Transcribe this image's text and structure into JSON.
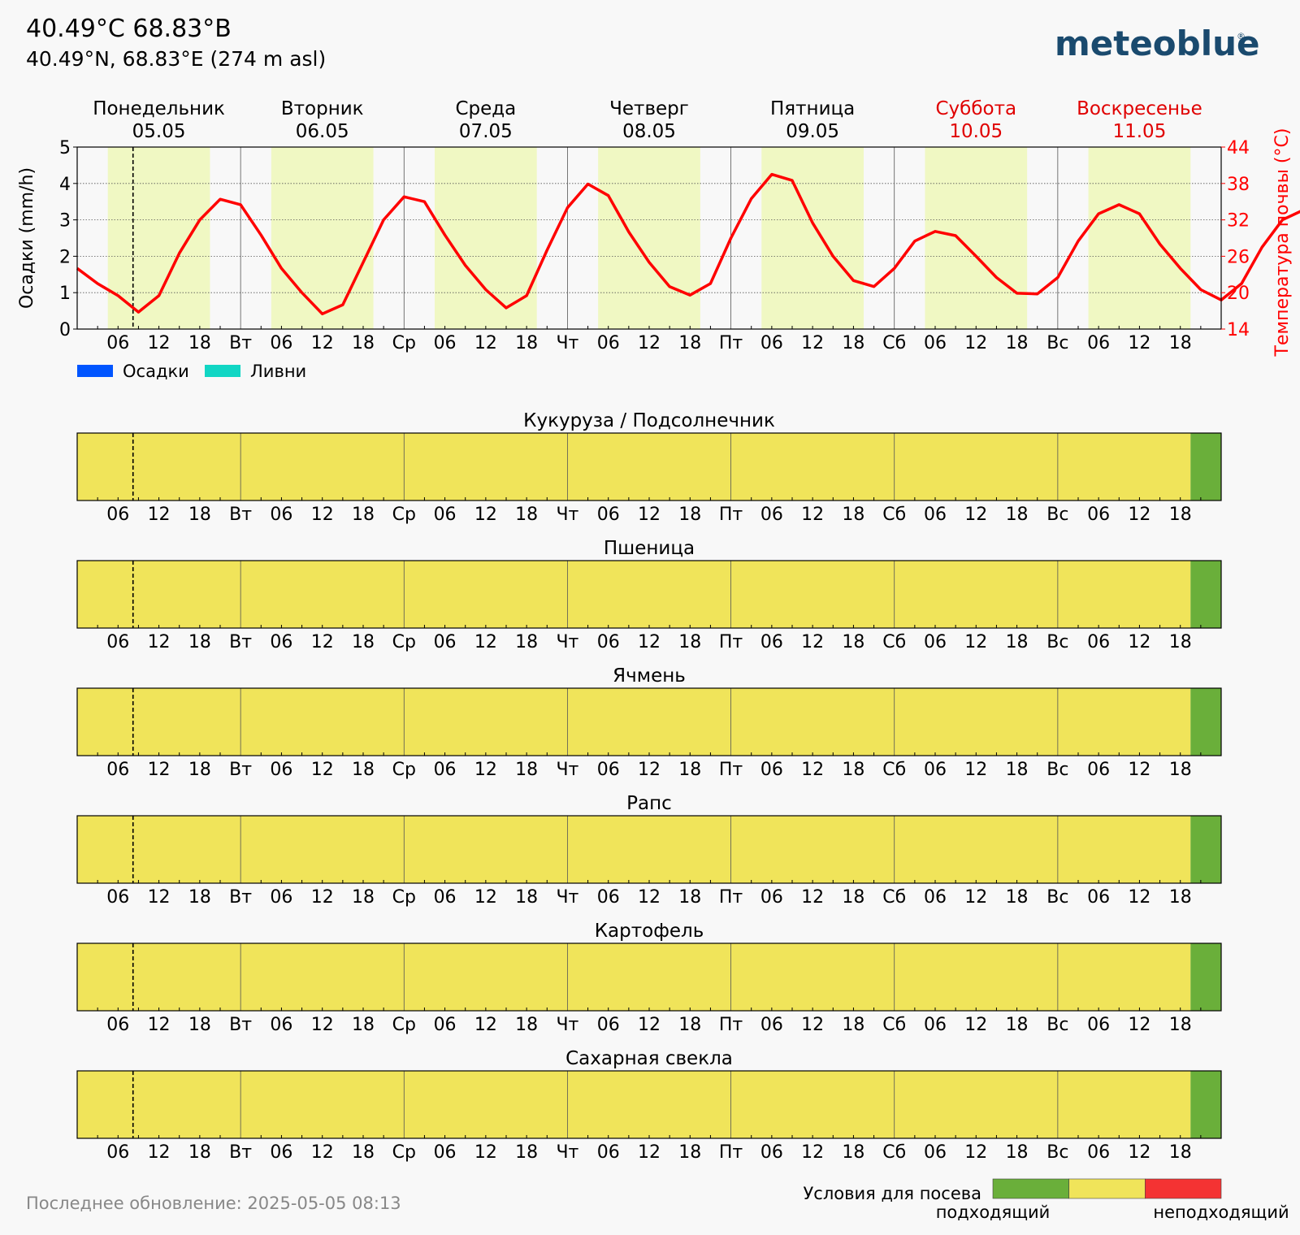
{
  "header": {
    "title": "40.49°C 68.83°B",
    "subtitle": "40.49°N, 68.83°E (274 m asl)",
    "logo": "meteoblue",
    "logo_mark": "®"
  },
  "footer": {
    "last_update": "Последнее обновление: 2025-05-05 08:13"
  },
  "colors": {
    "suitable": "#6aaf3a",
    "medium": "#f0e45a",
    "unsuitable": "#f43333",
    "temperature_line": "#ff0000",
    "precip": "#0055ff",
    "showers": "#11d6c4",
    "day_band": "#f0f8c3",
    "logo": "#1a4a6e"
  },
  "chart_data": [
    {
      "type": "line",
      "ylabel": "Осадки (mm/h)",
      "ylabel_right": "Температура почвы (°C)",
      "ylim": [
        0,
        5
      ],
      "ylim_right": [
        14,
        44
      ],
      "yticks": [
        "0",
        "1",
        "2",
        "3",
        "4",
        "5"
      ],
      "yticks_right": [
        "14",
        "20",
        "26",
        "32",
        "38",
        "44"
      ],
      "days": [
        {
          "name": "Понедельник",
          "date": "05.05",
          "weekend": false
        },
        {
          "name": "Вторник",
          "date": "06.05",
          "weekend": false
        },
        {
          "name": "Среда",
          "date": "07.05",
          "weekend": false
        },
        {
          "name": "Четверг",
          "date": "08.05",
          "weekend": false
        },
        {
          "name": "Пятница",
          "date": "09.05",
          "weekend": false
        },
        {
          "name": "Суббота",
          "date": "10.05",
          "weekend": true
        },
        {
          "name": "Воскресенье",
          "date": "11.05",
          "weekend": true
        }
      ],
      "day_abbr": [
        "",
        "Вт",
        "Ср",
        "Чт",
        "Пт",
        "Сб",
        "Вс"
      ],
      "hour_ticks": [
        "06",
        "12",
        "18"
      ],
      "daylight_hours": [
        4.5,
        19.5
      ],
      "now_hour": 8.2,
      "legend": [
        {
          "label": "Осадки",
          "color": "#0055ff"
        },
        {
          "label": "Ливни",
          "color": "#11d6c4"
        }
      ],
      "series": [
        {
          "name": "Температура почвы",
          "x_step_hours": 3,
          "values": [
            24,
            21.5,
            19.5,
            16.8,
            19.5,
            26.5,
            32,
            35.4,
            34.5,
            29.5,
            24,
            20,
            16.5,
            18,
            25,
            32,
            35.8,
            35,
            29.5,
            24.5,
            20.5,
            17.5,
            19.5,
            27,
            34,
            37.9,
            36,
            30,
            25,
            21,
            19.6,
            21.5,
            29,
            35.5,
            39.5,
            38.5,
            31.5,
            26,
            22,
            21,
            24,
            28.5,
            30.1,
            29.4,
            26,
            22.5,
            19.9,
            19.8,
            22.5,
            28.5,
            33,
            34.5,
            33,
            28,
            24,
            20.5,
            18.8,
            21.5,
            27.5,
            32,
            33.6,
            31.5,
            26.5,
            22
          ]
        },
        {
          "name": "Осадки",
          "values": []
        },
        {
          "name": "Ливни",
          "values": []
        }
      ]
    },
    {
      "type": "heatmap",
      "title": "Кукуруза / Подсолнечник",
      "segments": [
        {
          "from_hour": 0,
          "to_hour": 163.5,
          "condition": "medium"
        },
        {
          "from_hour": 163.5,
          "to_hour": 168,
          "condition": "suitable"
        }
      ]
    },
    {
      "type": "heatmap",
      "title": "Пшеница",
      "segments": [
        {
          "from_hour": 0,
          "to_hour": 163.5,
          "condition": "medium"
        },
        {
          "from_hour": 163.5,
          "to_hour": 168,
          "condition": "suitable"
        }
      ]
    },
    {
      "type": "heatmap",
      "title": "Ячмень",
      "segments": [
        {
          "from_hour": 0,
          "to_hour": 163.5,
          "condition": "medium"
        },
        {
          "from_hour": 163.5,
          "to_hour": 168,
          "condition": "suitable"
        }
      ]
    },
    {
      "type": "heatmap",
      "title": "Рапс",
      "segments": [
        {
          "from_hour": 0,
          "to_hour": 163.5,
          "condition": "medium"
        },
        {
          "from_hour": 163.5,
          "to_hour": 168,
          "condition": "suitable"
        }
      ]
    },
    {
      "type": "heatmap",
      "title": "Картофель",
      "segments": [
        {
          "from_hour": 0,
          "to_hour": 163.5,
          "condition": "medium"
        },
        {
          "from_hour": 163.5,
          "to_hour": 168,
          "condition": "suitable"
        }
      ]
    },
    {
      "type": "heatmap",
      "title": "Сахарная свекла",
      "segments": [
        {
          "from_hour": 0,
          "to_hour": 163.5,
          "condition": "medium"
        },
        {
          "from_hour": 163.5,
          "to_hour": 168,
          "condition": "suitable"
        }
      ]
    }
  ],
  "condition_legend": {
    "title": "Условия для посева",
    "low_label": "подходящий",
    "high_label": "неподходящий",
    "colors": [
      "#6aaf3a",
      "#f0e45a",
      "#f43333"
    ]
  }
}
